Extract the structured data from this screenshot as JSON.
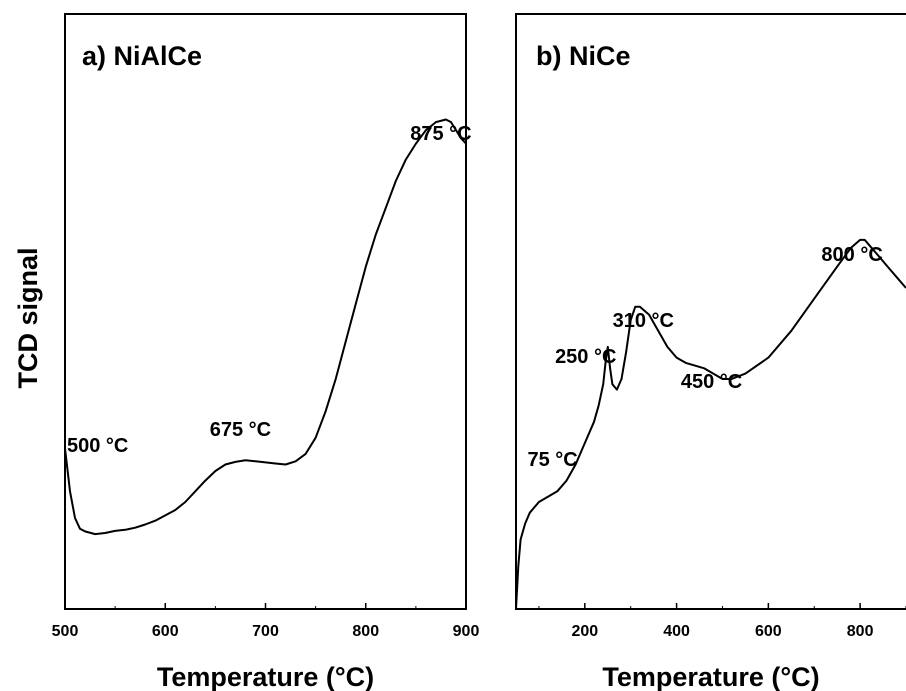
{
  "figure": {
    "ylabel": "TCD signal"
  },
  "chart_data": [
    {
      "type": "line",
      "title": "a) NiAlCe",
      "xlabel": "Temperature (°C)",
      "ylabel": "TCD signal",
      "xlim": [
        500,
        900
      ],
      "ylim": [
        0,
        1
      ],
      "x_ticks": [
        500,
        600,
        700,
        800,
        900
      ],
      "y_ticks": [],
      "grid": false,
      "series": [
        {
          "x": [
            500,
            505,
            510,
            515,
            520,
            530,
            540,
            550,
            560,
            570,
            580,
            590,
            600,
            610,
            620,
            630,
            640,
            650,
            660,
            670,
            680,
            690,
            700,
            710,
            720,
            730,
            740,
            750,
            760,
            770,
            780,
            790,
            800,
            810,
            820,
            830,
            840,
            850,
            860,
            870,
            880,
            885,
            890,
            895,
            900
          ],
          "y": [
            0.3,
            0.22,
            0.17,
            0.15,
            0.145,
            0.14,
            0.142,
            0.146,
            0.148,
            0.152,
            0.158,
            0.165,
            0.175,
            0.185,
            0.2,
            0.22,
            0.24,
            0.258,
            0.27,
            0.275,
            0.278,
            0.276,
            0.274,
            0.272,
            0.27,
            0.276,
            0.29,
            0.32,
            0.37,
            0.43,
            0.5,
            0.57,
            0.64,
            0.7,
            0.75,
            0.8,
            0.84,
            0.87,
            0.895,
            0.91,
            0.915,
            0.91,
            0.895,
            0.88,
            0.87
          ]
        }
      ],
      "annotations": [
        {
          "text": "500 °C",
          "x": 500
        },
        {
          "text": "675 °C",
          "x": 675
        },
        {
          "text": "875 °C",
          "x": 875
        }
      ]
    },
    {
      "type": "line",
      "title": "b) NiCe",
      "xlabel": "Temperature (°C)",
      "ylabel": "TCD signal",
      "xlim": [
        50,
        900
      ],
      "ylim": [
        0,
        1
      ],
      "x_ticks": [
        200,
        400,
        600,
        800
      ],
      "y_ticks": [],
      "grid": false,
      "series": [
        {
          "x": [
            50,
            55,
            60,
            70,
            80,
            100,
            120,
            140,
            160,
            180,
            200,
            220,
            230,
            240,
            245,
            250,
            255,
            260,
            270,
            280,
            290,
            300,
            310,
            320,
            340,
            360,
            380,
            400,
            420,
            440,
            460,
            480,
            500,
            520,
            550,
            600,
            650,
            700,
            750,
            780,
            800,
            810,
            820,
            840,
            860,
            880,
            900
          ],
          "y": [
            0.0,
            0.08,
            0.13,
            0.16,
            0.18,
            0.2,
            0.21,
            0.22,
            0.24,
            0.27,
            0.31,
            0.35,
            0.38,
            0.42,
            0.46,
            0.49,
            0.45,
            0.42,
            0.41,
            0.43,
            0.48,
            0.54,
            0.565,
            0.565,
            0.55,
            0.52,
            0.49,
            0.47,
            0.46,
            0.455,
            0.45,
            0.44,
            0.43,
            0.43,
            0.44,
            0.47,
            0.52,
            0.58,
            0.64,
            0.675,
            0.69,
            0.69,
            0.68,
            0.66,
            0.64,
            0.62,
            0.6
          ]
        }
      ],
      "annotations": [
        {
          "text": "75 °C",
          "x": 75
        },
        {
          "text": "250 °C",
          "x": 250
        },
        {
          "text": "310 °C",
          "x": 310
        },
        {
          "text": "450 °C",
          "x": 450
        },
        {
          "text": "800 °C",
          "x": 800
        }
      ]
    }
  ]
}
